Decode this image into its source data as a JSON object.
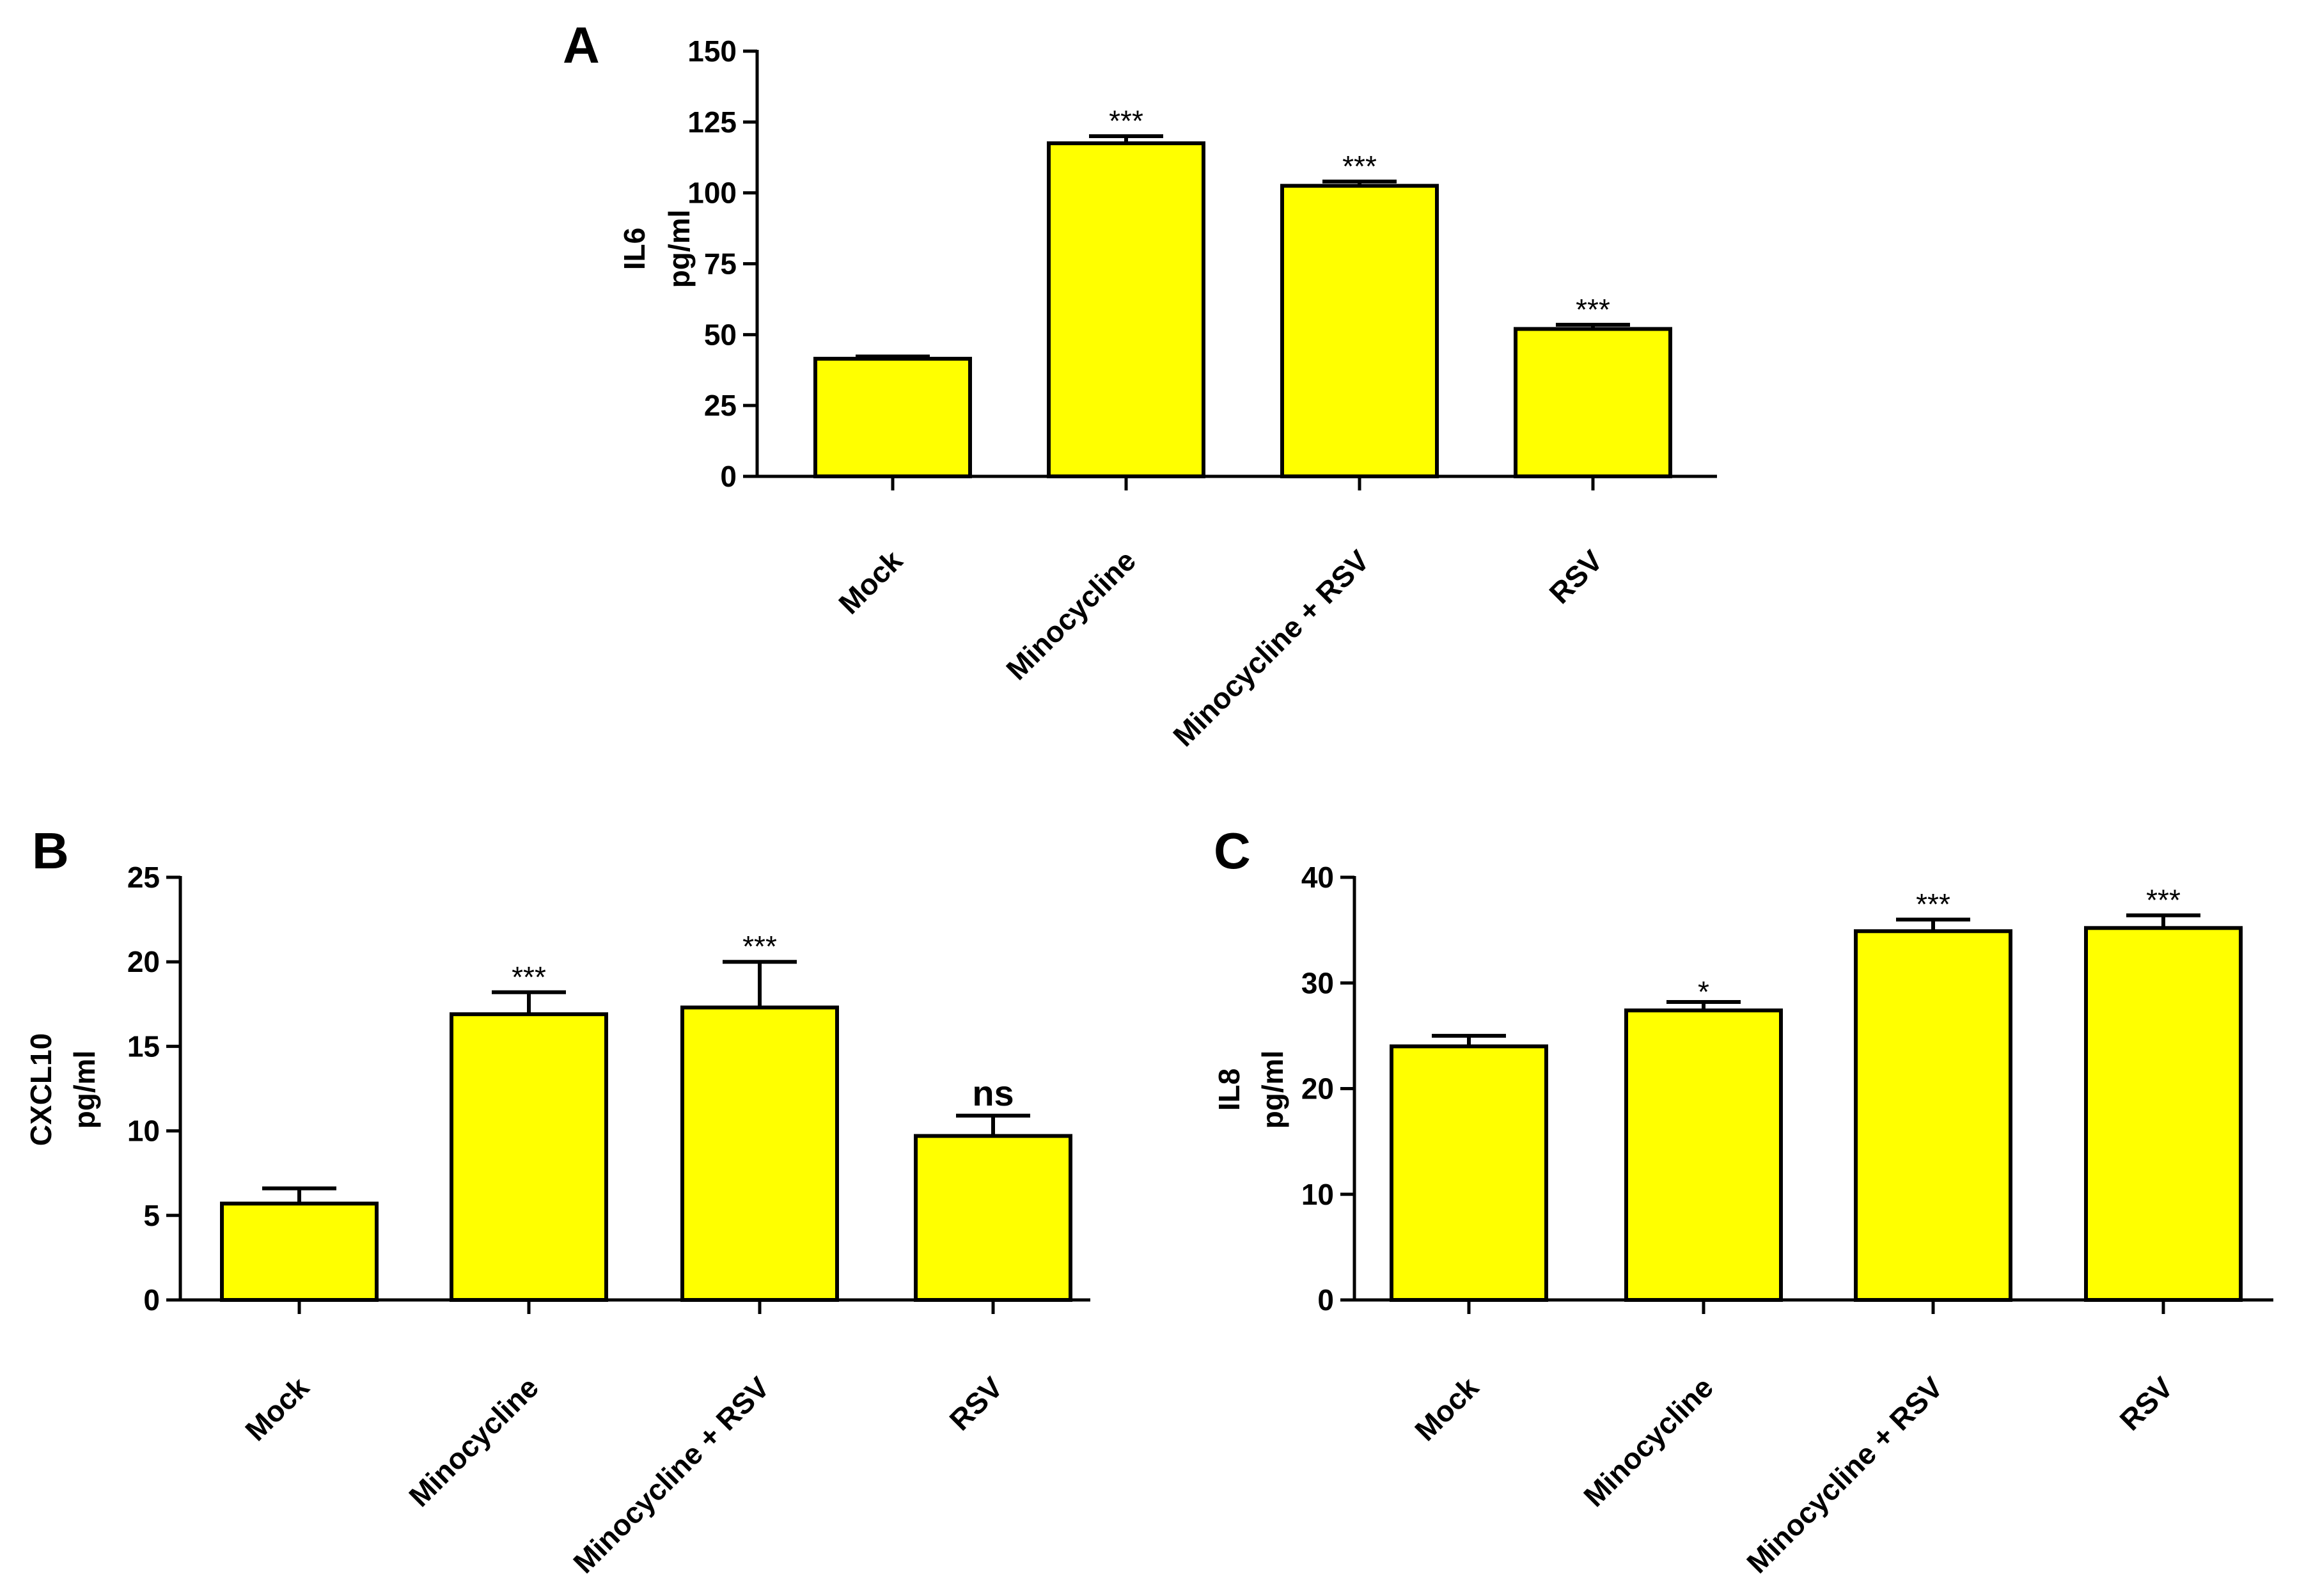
{
  "chart_data": [
    {
      "panel": "A",
      "type": "bar",
      "ylabel_line1": "IL6",
      "ylabel_line2": "pg/ml",
      "categories": [
        "Mock",
        "Minocycline",
        "Minocycline + RSV",
        "RSV"
      ],
      "values": [
        41.5,
        117.5,
        102.5,
        52
      ],
      "errors": [
        0.8,
        2.5,
        1.5,
        1.5
      ],
      "significance": [
        "",
        "***",
        "***",
        "***"
      ],
      "ylim": [
        0,
        150
      ],
      "yticks": [
        0,
        25,
        50,
        75,
        100,
        125,
        150
      ],
      "bar_color": "#ffff00"
    },
    {
      "panel": "B",
      "type": "bar",
      "ylabel_line1": "CXCL10",
      "ylabel_line2": "pg/ml",
      "categories": [
        "Mock",
        "Minocycline",
        "Minocycline + RSV",
        "RSV"
      ],
      "values": [
        5.7,
        16.9,
        17.3,
        9.7
      ],
      "errors": [
        0.9,
        1.3,
        2.7,
        1.2
      ],
      "significance": [
        "",
        "***",
        "***",
        "ns"
      ],
      "ylim": [
        0,
        25
      ],
      "yticks": [
        0,
        5,
        10,
        15,
        20,
        25
      ],
      "bar_color": "#ffff00"
    },
    {
      "panel": "C",
      "type": "bar",
      "ylabel_line1": "IL8",
      "ylabel_line2": "pg/ml",
      "categories": [
        "Mock",
        "Minocycline",
        "Minocycline + RSV",
        "RSV"
      ],
      "values": [
        24,
        27.4,
        34.9,
        35.2
      ],
      "errors": [
        1.0,
        0.8,
        1.1,
        1.2
      ],
      "significance": [
        "",
        "*",
        "***",
        "***"
      ],
      "ylim": [
        0,
        40
      ],
      "yticks": [
        0,
        10,
        20,
        30,
        40
      ],
      "bar_color": "#ffff00"
    }
  ]
}
